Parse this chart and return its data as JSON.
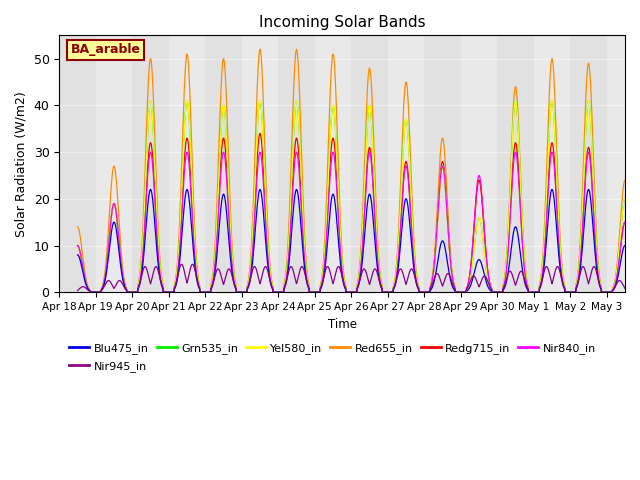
{
  "title": "Incoming Solar Bands",
  "xlabel": "Time",
  "ylabel": "Solar Radiation (W/m2)",
  "annotation_label": "BA_arable",
  "annotation_color": "#8B0000",
  "annotation_bg": "#FFFF99",
  "background_color": "#E8E8E8",
  "ylim": [
    0,
    55
  ],
  "series": {
    "Blu475_in": {
      "color": "#0000EE"
    },
    "Grn535_in": {
      "color": "#00EE00"
    },
    "Yel580_in": {
      "color": "#FFFF00"
    },
    "Red655_in": {
      "color": "#FF8C00"
    },
    "Redg715_in": {
      "color": "#FF0000"
    },
    "Nir840_in": {
      "color": "#FF00FF"
    },
    "Nir945_in": {
      "color": "#8B008B"
    }
  },
  "date_labels": [
    "Apr 18",
    "Apr 19",
    "Apr 20",
    "Apr 21",
    "Apr 22",
    "Apr 23",
    "Apr 24",
    "Apr 25",
    "Apr 26",
    "Apr 27",
    "Apr 28",
    "Apr 29",
    "Apr 30",
    "May 1",
    "May 2",
    "May 3"
  ],
  "sigma": 0.13,
  "sigma_nir": 0.1
}
